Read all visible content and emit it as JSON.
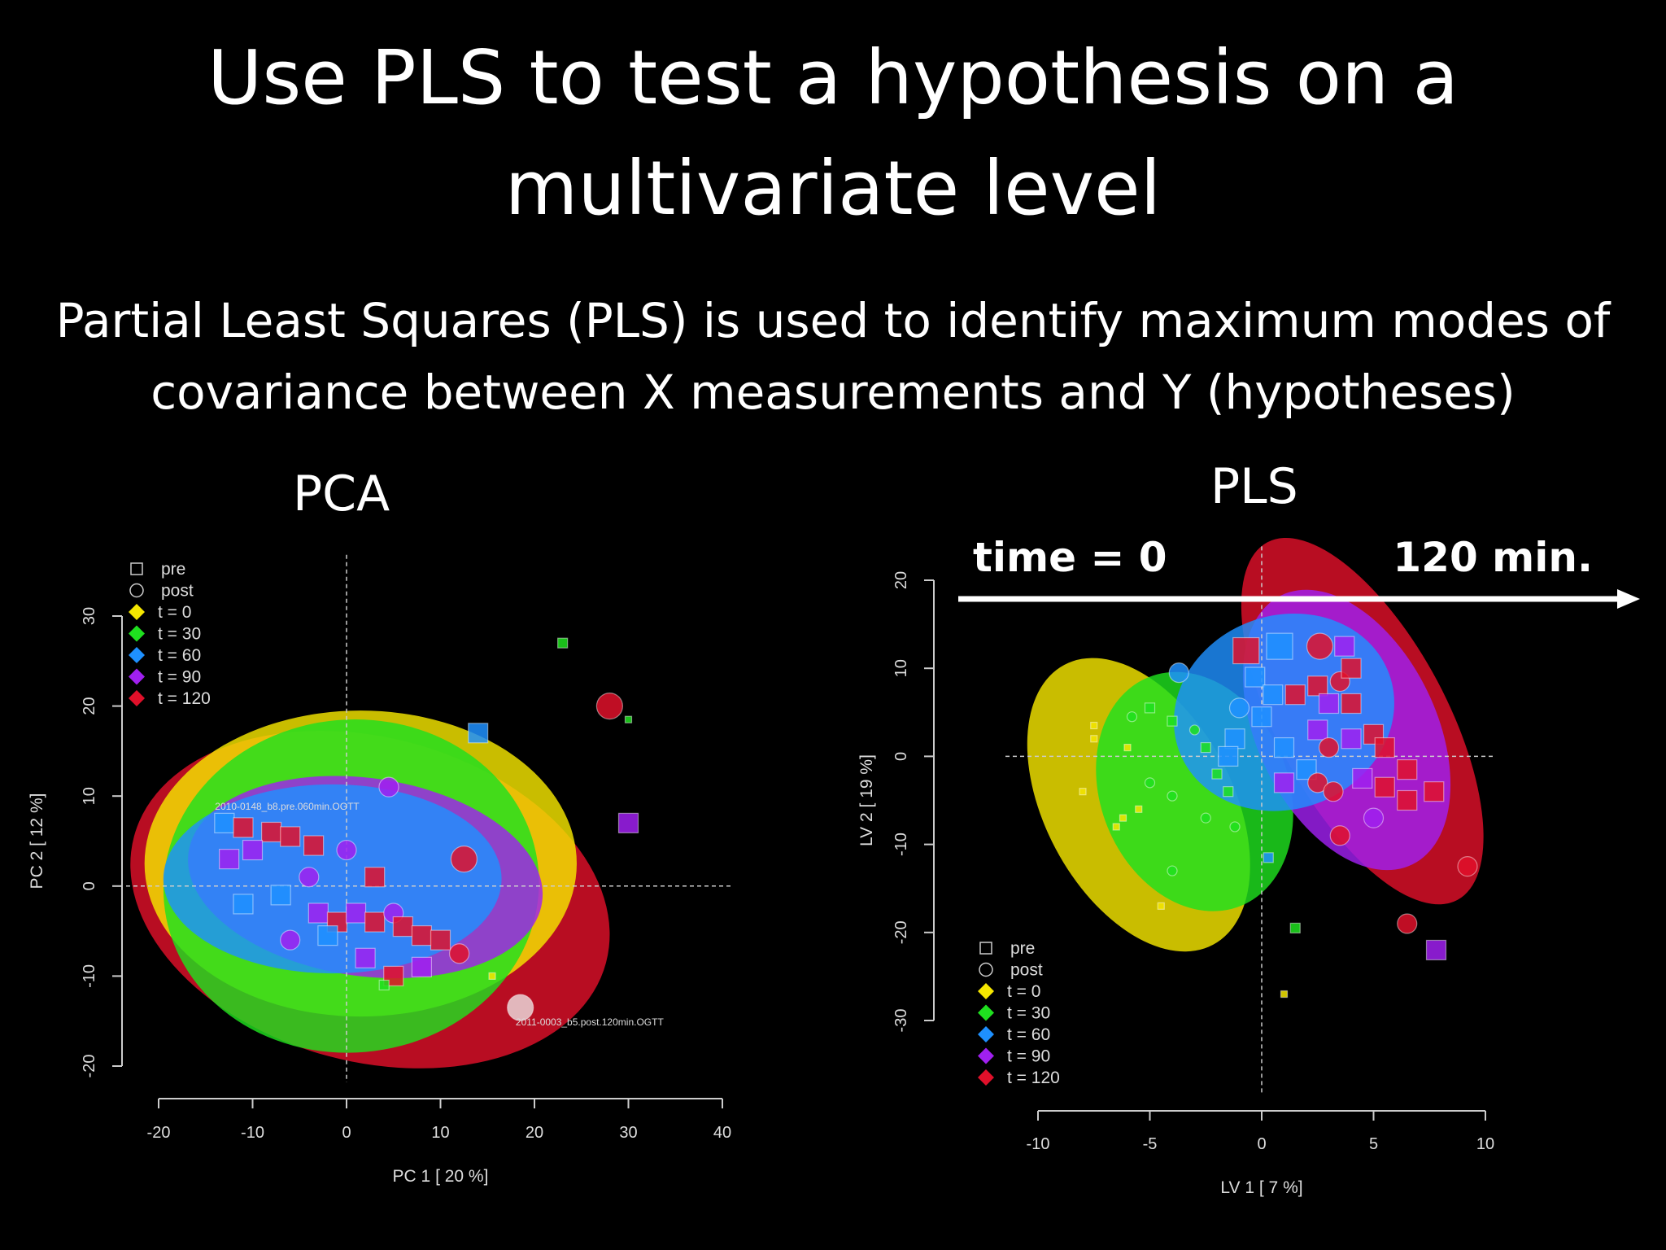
{
  "slide": {
    "title_line1": "Use PLS to test a hypothesis on a",
    "title_line2": "multivariate level",
    "subtitle_line1": "Partial Least Squares (PLS) is used to identify maximum modes of",
    "subtitle_line2": "covariance between X measurements and Y (hypotheses)",
    "pca_label": "PCA",
    "pls_label": "PLS",
    "arrow_start_label": "time = 0",
    "arrow_end_label": "120 min."
  },
  "legend": {
    "shapes": [
      {
        "label": "pre",
        "icon": "square-outline-icon"
      },
      {
        "label": "post",
        "icon": "circle-outline-icon"
      }
    ],
    "groups": [
      {
        "label": "t = 0",
        "color": "#f5e600"
      },
      {
        "label": "t = 30",
        "color": "#1fe01f"
      },
      {
        "label": "t = 60",
        "color": "#1e90ff"
      },
      {
        "label": "t = 90",
        "color": "#a020f0"
      },
      {
        "label": "t = 120",
        "color": "#e0102a"
      }
    ]
  },
  "chart_data": [
    {
      "type": "scatter",
      "title": "",
      "xlabel": "PC 1 [ 20 %]",
      "ylabel": "PC 2 [ 12 %]",
      "xlim": [
        -20,
        40
      ],
      "ylim": [
        -20,
        35
      ],
      "xticks": [
        -20,
        -10,
        0,
        10,
        20,
        30,
        40
      ],
      "yticks": [
        -20,
        -10,
        0,
        10,
        20,
        30
      ],
      "legend_position": "top-left",
      "ellipses": [
        {
          "group": "t = 120",
          "cx": 2.5,
          "cy": -1.5,
          "rx": 26,
          "ry": 18,
          "rotate": 15
        },
        {
          "group": "t = 0",
          "cx": 1.5,
          "cy": 2.5,
          "rx": 23,
          "ry": 17,
          "rotate": 0
        },
        {
          "group": "t = 30",
          "cx": 0.5,
          "cy": 0,
          "rx": 20,
          "ry": 18.5,
          "rotate": -5
        },
        {
          "group": "t = 90",
          "cx": 2,
          "cy": 1,
          "rx": 19,
          "ry": 11,
          "rotate": 8
        },
        {
          "group": "t = 60",
          "cx": -1.5,
          "cy": 0.8,
          "rx": 18,
          "ry": 10.5,
          "rotate": 0
        }
      ],
      "annotations": [
        {
          "text": "2010-0148_b8.pre.060min.OGTT",
          "x": -14,
          "y": 8.5
        },
        {
          "text": "2011-0003_b5.post.120min.OGTT",
          "x": 18,
          "y": -15.5
        }
      ],
      "points": [
        {
          "x": 23,
          "y": 27,
          "group": "t = 30",
          "shape": "pre",
          "size": "s"
        },
        {
          "x": 28,
          "y": 20,
          "group": "t = 120",
          "shape": "post",
          "size": "l"
        },
        {
          "x": 30,
          "y": 18.5,
          "group": "t = 30",
          "shape": "pre",
          "size": "xs"
        },
        {
          "x": 14,
          "y": 17,
          "group": "t = 60",
          "shape": "pre",
          "size": "m"
        },
        {
          "x": 30,
          "y": 7,
          "group": "t = 90",
          "shape": "pre",
          "size": "m"
        },
        {
          "x": 4.5,
          "y": 11,
          "group": "t = 90",
          "shape": "post",
          "size": "m"
        },
        {
          "x": -13,
          "y": 7,
          "group": "t = 60",
          "shape": "pre",
          "size": "m"
        },
        {
          "x": -11,
          "y": 6.5,
          "group": "t = 120",
          "shape": "pre",
          "size": "m"
        },
        {
          "x": -8,
          "y": 6,
          "group": "t = 120",
          "shape": "pre",
          "size": "m"
        },
        {
          "x": -6,
          "y": 5.5,
          "group": "t = 120",
          "shape": "pre",
          "size": "m"
        },
        {
          "x": -3.5,
          "y": 4.5,
          "group": "t = 120",
          "shape": "pre",
          "size": "m"
        },
        {
          "x": -10,
          "y": 4,
          "group": "t = 90",
          "shape": "pre",
          "size": "m"
        },
        {
          "x": -12.5,
          "y": 3,
          "group": "t = 90",
          "shape": "pre",
          "size": "m"
        },
        {
          "x": 0,
          "y": 4,
          "group": "t = 90",
          "shape": "post",
          "size": "m"
        },
        {
          "x": 12.5,
          "y": 3,
          "group": "t = 120",
          "shape": "post",
          "size": "l"
        },
        {
          "x": -11,
          "y": -2,
          "group": "t = 60",
          "shape": "pre",
          "size": "m"
        },
        {
          "x": -7,
          "y": -1,
          "group": "t = 60",
          "shape": "pre",
          "size": "m"
        },
        {
          "x": -4,
          "y": 1,
          "group": "t = 90",
          "shape": "post",
          "size": "m"
        },
        {
          "x": 3,
          "y": 1,
          "group": "t = 120",
          "shape": "pre",
          "size": "m"
        },
        {
          "x": -3,
          "y": -3,
          "group": "t = 90",
          "shape": "pre",
          "size": "m"
        },
        {
          "x": -1,
          "y": -4,
          "group": "t = 120",
          "shape": "pre",
          "size": "m"
        },
        {
          "x": 1,
          "y": -3,
          "group": "t = 90",
          "shape": "pre",
          "size": "m"
        },
        {
          "x": 3,
          "y": -4,
          "group": "t = 120",
          "shape": "pre",
          "size": "m"
        },
        {
          "x": 5,
          "y": -3,
          "group": "t = 90",
          "shape": "post",
          "size": "m"
        },
        {
          "x": 6,
          "y": -4.5,
          "group": "t = 120",
          "shape": "pre",
          "size": "m"
        },
        {
          "x": 8,
          "y": -5.5,
          "group": "t = 120",
          "shape": "pre",
          "size": "m"
        },
        {
          "x": 10,
          "y": -6,
          "group": "t = 120",
          "shape": "pre",
          "size": "m"
        },
        {
          "x": 12,
          "y": -7.5,
          "group": "t = 120",
          "shape": "post",
          "size": "m"
        },
        {
          "x": 8,
          "y": -9,
          "group": "t = 90",
          "shape": "pre",
          "size": "m"
        },
        {
          "x": 5,
          "y": -10,
          "group": "t = 120",
          "shape": "pre",
          "size": "m"
        },
        {
          "x": 2,
          "y": -8,
          "group": "t = 90",
          "shape": "pre",
          "size": "m"
        },
        {
          "x": -2,
          "y": -5.5,
          "group": "t = 60",
          "shape": "pre",
          "size": "m"
        },
        {
          "x": -6,
          "y": -6,
          "group": "t = 90",
          "shape": "post",
          "size": "m"
        },
        {
          "x": 4,
          "y": -11,
          "group": "t = 30",
          "shape": "pre",
          "size": "s"
        },
        {
          "x": 15.5,
          "y": -10,
          "group": "t = 0",
          "shape": "pre",
          "size": "xs"
        },
        {
          "x": 18.5,
          "y": -13.5,
          "group": "t = 120",
          "shape": "post",
          "size": "l",
          "highlight": true
        }
      ]
    },
    {
      "type": "scatter",
      "title": "",
      "xlabel": "LV 1 [ 7 %]",
      "ylabel": "LV 2 [ 19 %]",
      "xlim": [
        -10,
        10
      ],
      "ylim": [
        -30,
        22
      ],
      "xticks": [
        -10,
        -5,
        0,
        5,
        10
      ],
      "yticks": [
        -30,
        -20,
        -10,
        0,
        10,
        20
      ],
      "legend_position": "bottom-left",
      "ellipses": [
        {
          "group": "t = 0",
          "cx": -5.5,
          "cy": -5.5,
          "rx": 4.2,
          "ry": 18,
          "rotate": -28
        },
        {
          "group": "t = 30",
          "cx": -3,
          "cy": -4,
          "rx": 4.2,
          "ry": 14,
          "rotate": -22
        },
        {
          "group": "t = 120",
          "cx": 4.5,
          "cy": 4,
          "rx": 3.8,
          "ry": 23,
          "rotate": -28
        },
        {
          "group": "t = 90",
          "cx": 3.8,
          "cy": 3,
          "rx": 4,
          "ry": 17,
          "rotate": -26
        },
        {
          "group": "t = 60",
          "cx": 1,
          "cy": 5,
          "rx": 5,
          "ry": 11,
          "rotate": -20
        }
      ],
      "points": [
        {
          "x": -8,
          "y": -4,
          "group": "t = 0",
          "shape": "pre",
          "size": "xs"
        },
        {
          "x": -7.5,
          "y": 2,
          "group": "t = 0",
          "shape": "pre",
          "size": "xs"
        },
        {
          "x": -7.5,
          "y": 3.5,
          "group": "t = 0",
          "shape": "pre",
          "size": "xs"
        },
        {
          "x": -6.5,
          "y": -8,
          "group": "t = 0",
          "shape": "pre",
          "size": "xs"
        },
        {
          "x": -6.2,
          "y": -7,
          "group": "t = 0",
          "shape": "pre",
          "size": "xs"
        },
        {
          "x": -5.5,
          "y": -6,
          "group": "t = 0",
          "shape": "pre",
          "size": "xs"
        },
        {
          "x": -4.5,
          "y": -17,
          "group": "t = 0",
          "shape": "pre",
          "size": "xs"
        },
        {
          "x": -6,
          "y": 1,
          "group": "t = 0",
          "shape": "pre",
          "size": "xs"
        },
        {
          "x": -5,
          "y": -3,
          "group": "t = 30",
          "shape": "post",
          "size": "s"
        },
        {
          "x": -4,
          "y": -4.5,
          "group": "t = 30",
          "shape": "post",
          "size": "s"
        },
        {
          "x": -5.8,
          "y": 4.5,
          "group": "t = 30",
          "shape": "post",
          "size": "s"
        },
        {
          "x": -5,
          "y": 5.5,
          "group": "t = 30",
          "shape": "pre",
          "size": "s"
        },
        {
          "x": -4,
          "y": 4,
          "group": "t = 30",
          "shape": "pre",
          "size": "s"
        },
        {
          "x": -3,
          "y": 3,
          "group": "t = 30",
          "shape": "post",
          "size": "s"
        },
        {
          "x": -2.5,
          "y": 1,
          "group": "t = 30",
          "shape": "pre",
          "size": "s"
        },
        {
          "x": -2,
          "y": -2,
          "group": "t = 30",
          "shape": "pre",
          "size": "s"
        },
        {
          "x": -1.5,
          "y": -4,
          "group": "t = 30",
          "shape": "pre",
          "size": "s"
        },
        {
          "x": -2.5,
          "y": -7,
          "group": "t = 30",
          "shape": "post",
          "size": "s"
        },
        {
          "x": -4,
          "y": -13,
          "group": "t = 30",
          "shape": "post",
          "size": "s"
        },
        {
          "x": -1.2,
          "y": -8,
          "group": "t = 30",
          "shape": "post",
          "size": "s"
        },
        {
          "x": -3.7,
          "y": 9.5,
          "group": "t = 60",
          "shape": "post",
          "size": "m"
        },
        {
          "x": -1,
          "y": 5.5,
          "group": "t = 60",
          "shape": "post",
          "size": "m"
        },
        {
          "x": -1.2,
          "y": 2,
          "group": "t = 60",
          "shape": "pre",
          "size": "m"
        },
        {
          "x": -1.5,
          "y": 0,
          "group": "t = 60",
          "shape": "pre",
          "size": "m"
        },
        {
          "x": 0,
          "y": 4.5,
          "group": "t = 60",
          "shape": "pre",
          "size": "m"
        },
        {
          "x": -0.3,
          "y": 9,
          "group": "t = 60",
          "shape": "pre",
          "size": "m"
        },
        {
          "x": 0.5,
          "y": 7,
          "group": "t = 60",
          "shape": "pre",
          "size": "m"
        },
        {
          "x": 1,
          "y": -3,
          "group": "t = 90",
          "shape": "pre",
          "size": "m"
        },
        {
          "x": 0.8,
          "y": 12.5,
          "group": "t = 60",
          "shape": "pre",
          "size": "l"
        },
        {
          "x": -0.7,
          "y": 12,
          "group": "t = 120",
          "shape": "pre",
          "size": "l"
        },
        {
          "x": 2.6,
          "y": 12.5,
          "group": "t = 120",
          "shape": "post",
          "size": "l"
        },
        {
          "x": 3.7,
          "y": 12.5,
          "group": "t = 90",
          "shape": "pre",
          "size": "m"
        },
        {
          "x": 1.5,
          "y": 7,
          "group": "t = 120",
          "shape": "pre",
          "size": "m"
        },
        {
          "x": 2.5,
          "y": 8,
          "group": "t = 120",
          "shape": "pre",
          "size": "m"
        },
        {
          "x": 3,
          "y": 6,
          "group": "t = 90",
          "shape": "pre",
          "size": "m"
        },
        {
          "x": 3.5,
          "y": 8.5,
          "group": "t = 120",
          "shape": "post",
          "size": "m"
        },
        {
          "x": 4,
          "y": 10,
          "group": "t = 120",
          "shape": "pre",
          "size": "m"
        },
        {
          "x": 4,
          "y": 6,
          "group": "t = 120",
          "shape": "pre",
          "size": "m"
        },
        {
          "x": 2.5,
          "y": 3,
          "group": "t = 90",
          "shape": "pre",
          "size": "m"
        },
        {
          "x": 3,
          "y": 1,
          "group": "t = 120",
          "shape": "post",
          "size": "m"
        },
        {
          "x": 4,
          "y": 2,
          "group": "t = 90",
          "shape": "pre",
          "size": "m"
        },
        {
          "x": 5,
          "y": 2.5,
          "group": "t = 120",
          "shape": "pre",
          "size": "m"
        },
        {
          "x": 5.5,
          "y": 1,
          "group": "t = 120",
          "shape": "pre",
          "size": "m"
        },
        {
          "x": 1,
          "y": 1,
          "group": "t = 60",
          "shape": "pre",
          "size": "m"
        },
        {
          "x": 2,
          "y": -1.5,
          "group": "t = 60",
          "shape": "pre",
          "size": "m"
        },
        {
          "x": 2.5,
          "y": -3,
          "group": "t = 120",
          "shape": "post",
          "size": "m"
        },
        {
          "x": 3.2,
          "y": -4,
          "group": "t = 120",
          "shape": "post",
          "size": "m"
        },
        {
          "x": 4.5,
          "y": -2.5,
          "group": "t = 90",
          "shape": "pre",
          "size": "m"
        },
        {
          "x": 5.5,
          "y": -3.5,
          "group": "t = 120",
          "shape": "pre",
          "size": "m"
        },
        {
          "x": 6.5,
          "y": -1.5,
          "group": "t = 120",
          "shape": "pre",
          "size": "m"
        },
        {
          "x": 6.5,
          "y": -5,
          "group": "t = 120",
          "shape": "pre",
          "size": "m"
        },
        {
          "x": 7.7,
          "y": -4,
          "group": "t = 120",
          "shape": "pre",
          "size": "m"
        },
        {
          "x": 3.5,
          "y": -9,
          "group": "t = 120",
          "shape": "post",
          "size": "m"
        },
        {
          "x": 5,
          "y": -7,
          "group": "t = 90",
          "shape": "post",
          "size": "m"
        },
        {
          "x": 0.3,
          "y": -11.5,
          "group": "t = 60",
          "shape": "pre",
          "size": "s"
        },
        {
          "x": 9.2,
          "y": -12.5,
          "group": "t = 120",
          "shape": "post",
          "size": "m"
        },
        {
          "x": 6.5,
          "y": -19,
          "group": "t = 120",
          "shape": "post",
          "size": "m"
        },
        {
          "x": 7.8,
          "y": -22,
          "group": "t = 90",
          "shape": "pre",
          "size": "m"
        },
        {
          "x": 1.5,
          "y": -19.5,
          "group": "t = 30",
          "shape": "pre",
          "size": "s"
        },
        {
          "x": 1,
          "y": -27,
          "group": "t = 0",
          "shape": "pre",
          "size": "xs"
        }
      ]
    }
  ]
}
